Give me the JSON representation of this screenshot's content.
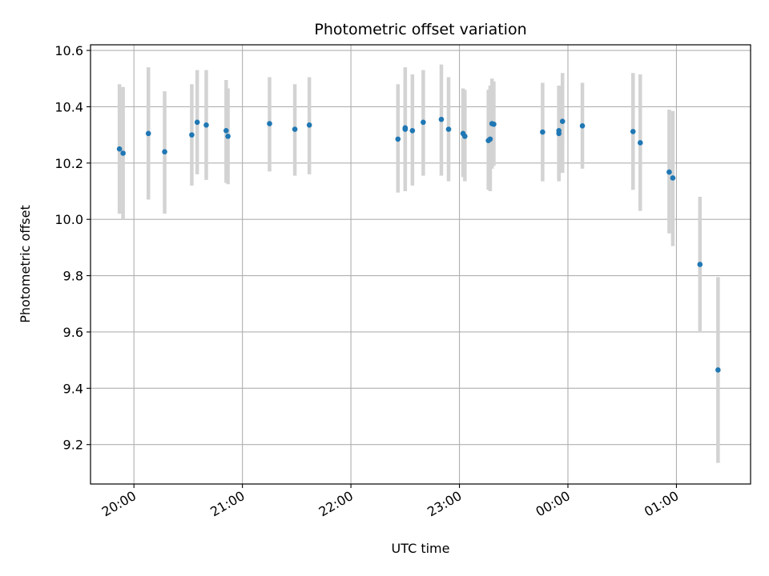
{
  "chart_data": {
    "type": "scatter",
    "title": "Photometric offset variation",
    "xlabel": "UTC time",
    "ylabel": "Photometric offset",
    "x_ticks": [
      "20:00",
      "21:00",
      "22:00",
      "23:00",
      "00:00",
      "01:00"
    ],
    "y_ticks": [
      "9.2",
      "9.4",
      "9.6",
      "9.8",
      "10.0",
      "10.2",
      "10.4",
      "10.6"
    ],
    "xlim": [
      "19:36",
      "01:41"
    ],
    "ylim": [
      9.06,
      10.62
    ],
    "grid": true,
    "colors": {
      "point": "#1f77b4",
      "errorbar": "#d3d3d3",
      "grid": "#b0b0b0"
    },
    "series": [
      {
        "points": [
          {
            "t": "19:52",
            "y": 10.25,
            "lo": 10.02,
            "hi": 10.48
          },
          {
            "t": "19:54",
            "y": 10.235,
            "lo": 10.0,
            "hi": 10.47
          },
          {
            "t": "20:08",
            "y": 10.305,
            "lo": 10.07,
            "hi": 10.54
          },
          {
            "t": "20:17",
            "y": 10.24,
            "lo": 10.02,
            "hi": 10.455
          },
          {
            "t": "20:32",
            "y": 10.3,
            "lo": 10.12,
            "hi": 10.48
          },
          {
            "t": "20:35",
            "y": 10.345,
            "lo": 10.16,
            "hi": 10.53
          },
          {
            "t": "20:40",
            "y": 10.335,
            "lo": 10.14,
            "hi": 10.53
          },
          {
            "t": "20:51",
            "y": 10.315,
            "lo": 10.13,
            "hi": 10.495
          },
          {
            "t": "20:52",
            "y": 10.295,
            "lo": 10.125,
            "hi": 10.465
          },
          {
            "t": "21:15",
            "y": 10.34,
            "lo": 10.17,
            "hi": 10.505
          },
          {
            "t": "21:29",
            "y": 10.32,
            "lo": 10.155,
            "hi": 10.48
          },
          {
            "t": "21:37",
            "y": 10.335,
            "lo": 10.16,
            "hi": 10.505
          },
          {
            "t": "22:26",
            "y": 10.285,
            "lo": 10.095,
            "hi": 10.48
          },
          {
            "t": "22:30",
            "y": 10.325,
            "lo": 10.1,
            "hi": 10.54
          },
          {
            "t": "22:30",
            "y": 10.32,
            "lo": 10.12,
            "hi": 10.5
          },
          {
            "t": "22:34",
            "y": 10.315,
            "lo": 10.12,
            "hi": 10.515
          },
          {
            "t": "22:40",
            "y": 10.345,
            "lo": 10.155,
            "hi": 10.53
          },
          {
            "t": "22:50",
            "y": 10.355,
            "lo": 10.155,
            "hi": 10.55
          },
          {
            "t": "22:54",
            "y": 10.32,
            "lo": 10.135,
            "hi": 10.505
          },
          {
            "t": "23:02",
            "y": 10.305,
            "lo": 10.15,
            "hi": 10.465
          },
          {
            "t": "23:03",
            "y": 10.295,
            "lo": 10.135,
            "hi": 10.46
          },
          {
            "t": "23:16",
            "y": 10.28,
            "lo": 10.105,
            "hi": 10.46
          },
          {
            "t": "23:17",
            "y": 10.285,
            "lo": 10.1,
            "hi": 10.475
          },
          {
            "t": "23:18",
            "y": 10.34,
            "lo": 10.18,
            "hi": 10.5
          },
          {
            "t": "23:19",
            "y": 10.338,
            "lo": 10.19,
            "hi": 10.49
          },
          {
            "t": "23:46",
            "y": 10.31,
            "lo": 10.135,
            "hi": 10.485
          },
          {
            "t": "23:55",
            "y": 10.305,
            "lo": 10.135,
            "hi": 10.475
          },
          {
            "t": "23:55",
            "y": 10.315,
            "lo": 10.14,
            "hi": 10.47
          },
          {
            "t": "23:57",
            "y": 10.348,
            "lo": 10.165,
            "hi": 10.52
          },
          {
            "t": "00:08",
            "y": 10.332,
            "lo": 10.18,
            "hi": 10.485
          },
          {
            "t": "00:36",
            "y": 10.312,
            "lo": 10.105,
            "hi": 10.52
          },
          {
            "t": "00:40",
            "y": 10.272,
            "lo": 10.03,
            "hi": 10.515
          },
          {
            "t": "00:56",
            "y": 10.168,
            "lo": 9.95,
            "hi": 10.39
          },
          {
            "t": "00:58",
            "y": 10.147,
            "lo": 9.905,
            "hi": 10.385
          },
          {
            "t": "01:13",
            "y": 9.84,
            "lo": 9.6,
            "hi": 10.08
          },
          {
            "t": "01:23",
            "y": 9.465,
            "lo": 9.135,
            "hi": 9.795
          }
        ]
      }
    ]
  }
}
